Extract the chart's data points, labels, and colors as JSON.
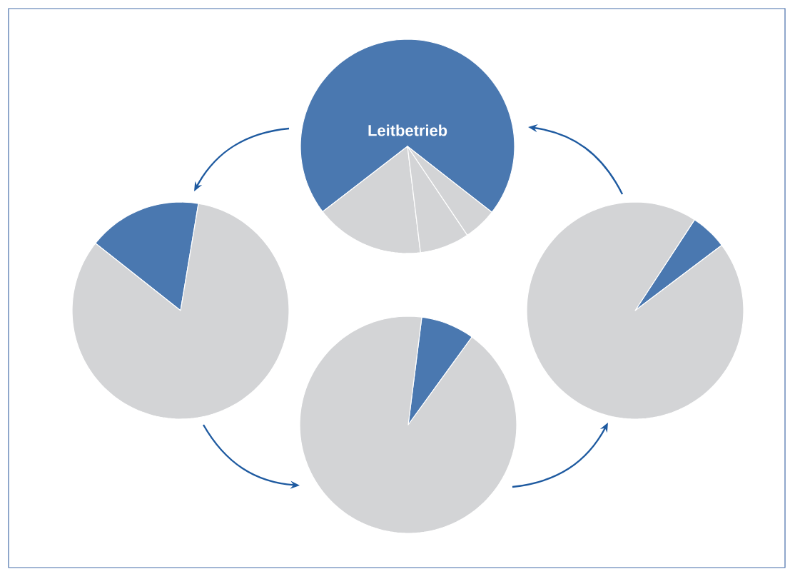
{
  "chart_data": [
    {
      "type": "pie",
      "categories": [
        "Leitbetrieb",
        null,
        null,
        null
      ],
      "values": [
        71,
        16.5,
        7.5,
        5
      ],
      "colors": [
        "#4a78b0",
        "#d3d4d6",
        "#d3d4d6",
        "#d3d4d6"
      ]
    },
    {
      "type": "pie",
      "categories": [
        null,
        null
      ],
      "values": [
        17,
        83
      ],
      "colors": [
        "#4a78b0",
        "#d3d4d6"
      ]
    },
    {
      "type": "pie",
      "categories": [
        null,
        null
      ],
      "values": [
        5.5,
        94.5
      ],
      "colors": [
        "#4a78b0",
        "#d3d4d6"
      ]
    },
    {
      "type": "pie",
      "categories": [
        null,
        null
      ],
      "values": [
        8,
        92
      ],
      "colors": [
        "#4a78b0",
        "#d3d4d6"
      ]
    }
  ]
}
